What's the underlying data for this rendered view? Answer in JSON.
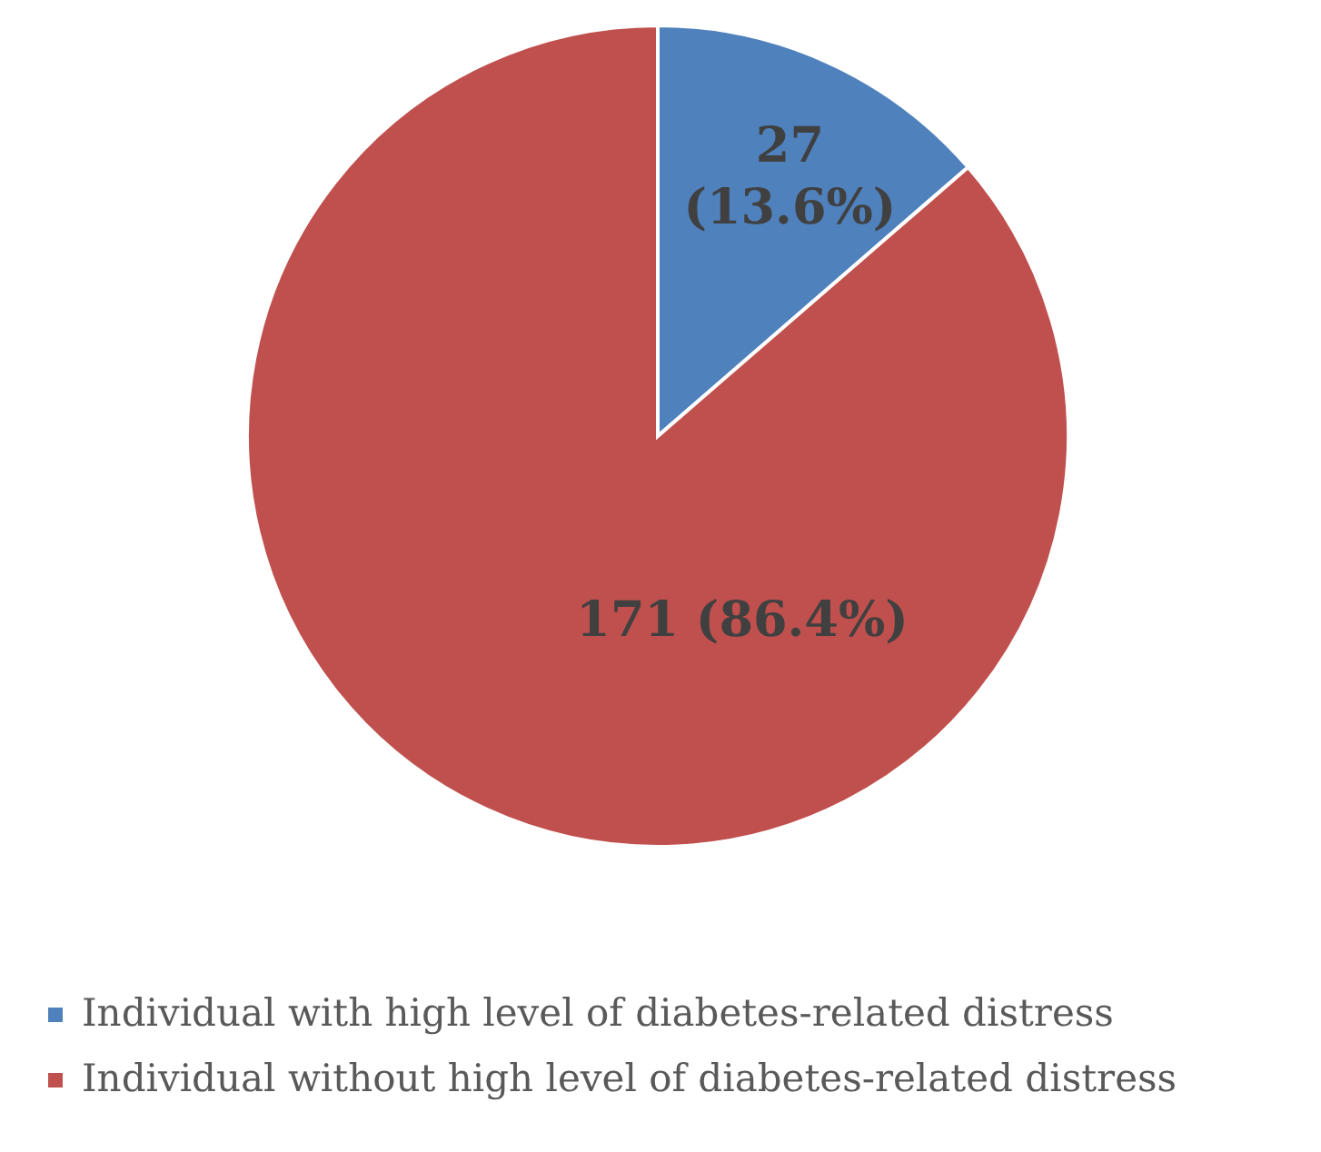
{
  "chart_data": {
    "type": "pie",
    "categories": [
      "Individual with high level of diabetes-related distress",
      "Individual without high level of diabetes-related distress"
    ],
    "values": [
      27,
      171
    ],
    "colors": [
      "#4f81bd",
      "#c0504d"
    ],
    "value_labels": [
      "27 (13.6%)",
      "171 (86.4%)"
    ],
    "legend": "bottom"
  }
}
